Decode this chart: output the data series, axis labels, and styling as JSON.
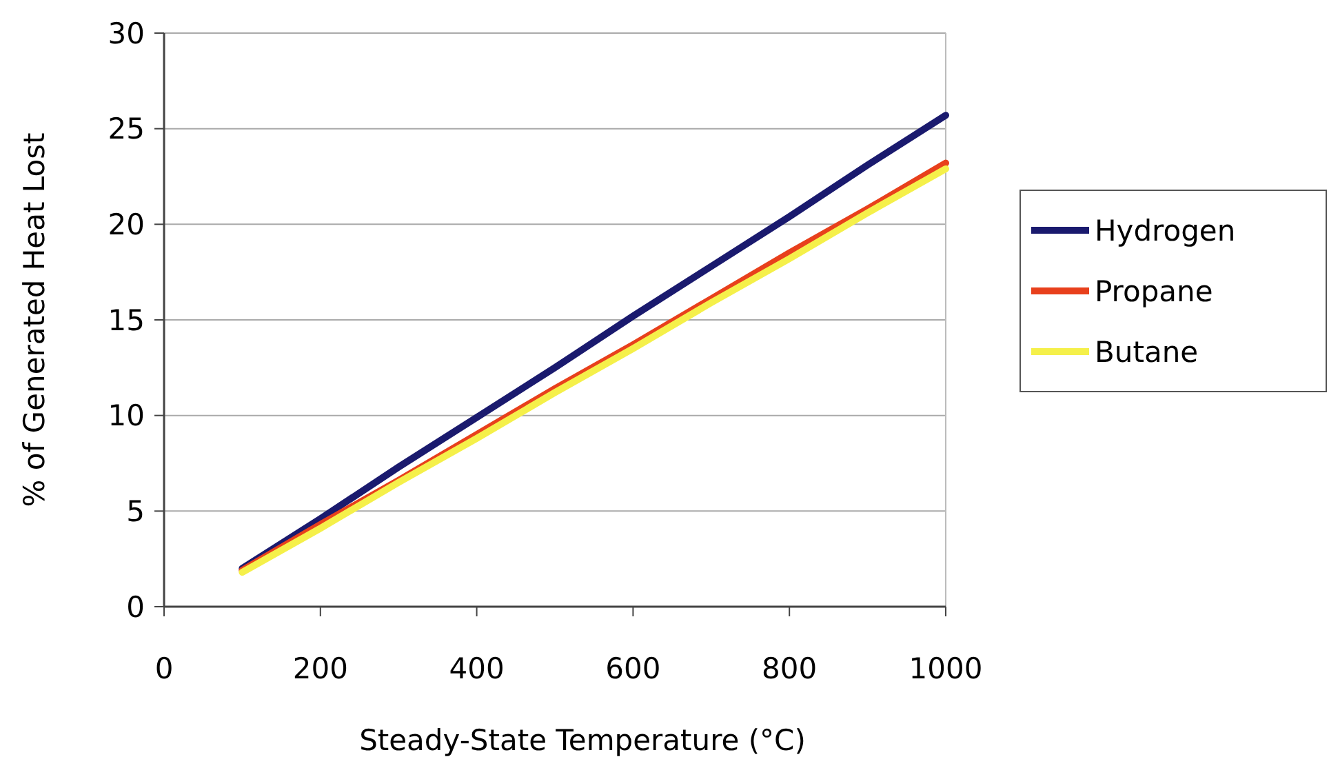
{
  "chart_data": {
    "type": "line",
    "xlabel": "Steady-State Temperature (°C)",
    "ylabel": "% of Generated Heat Lost",
    "x": [
      100,
      200,
      300,
      400,
      500,
      600,
      700,
      800,
      900,
      1000
    ],
    "series": [
      {
        "name": "Hydrogen",
        "color": "#1a1a6e",
        "values": [
          2.0,
          4.6,
          7.3,
          9.9,
          12.5,
          15.2,
          17.8,
          20.4,
          23.1,
          25.7
        ]
      },
      {
        "name": "Propane",
        "color": "#e8401c",
        "values": [
          1.9,
          4.3,
          6.6,
          9.0,
          11.4,
          13.7,
          16.1,
          18.5,
          20.8,
          23.2
        ]
      },
      {
        "name": "Butane",
        "color": "#f5f04a",
        "values": [
          1.8,
          4.1,
          6.5,
          8.8,
          11.2,
          13.5,
          15.9,
          18.2,
          20.6,
          22.9
        ]
      }
    ],
    "xlim": [
      0,
      1000
    ],
    "xticks": [
      0,
      200,
      400,
      600,
      800,
      1000
    ],
    "ylim": [
      0,
      30
    ],
    "yticks": [
      0,
      5,
      10,
      15,
      20,
      25,
      30
    ],
    "grid": "y",
    "legend": "right",
    "marker": "none",
    "line_style": "solid"
  }
}
